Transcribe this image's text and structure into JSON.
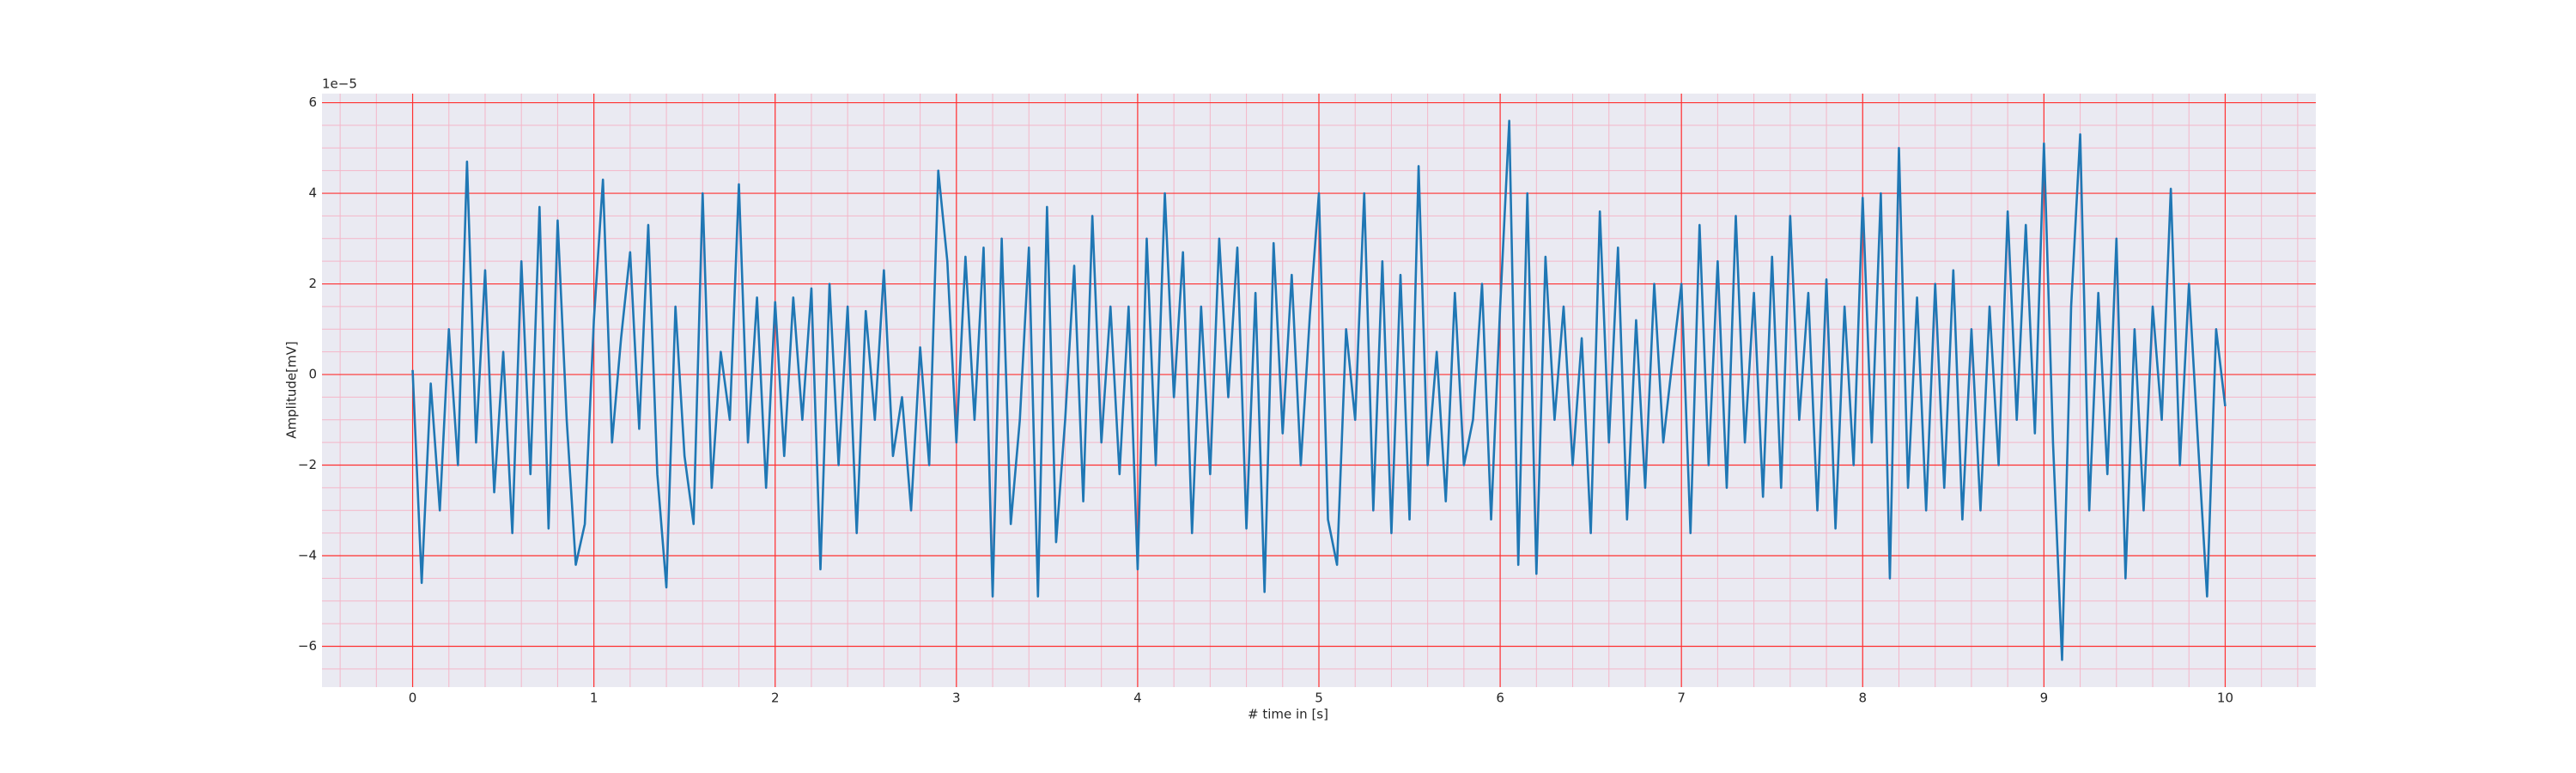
{
  "chart_data": {
    "type": "line",
    "xlabel": "# time in [s]",
    "ylabel": "Amplitude[mV]",
    "y_offset_text": "1e−5",
    "color": "#1f77b4",
    "grid": true,
    "minor_grid": true,
    "xlim": [
      -0.5,
      10.5
    ],
    "ylim": [
      -6.9,
      6.2
    ],
    "xticks": [
      0,
      1,
      2,
      3,
      4,
      5,
      6,
      7,
      8,
      9,
      10
    ],
    "yticks": [
      {
        "value": -6,
        "label": "−6"
      },
      {
        "value": -4,
        "label": "−4"
      },
      {
        "value": -2,
        "label": "−2"
      },
      0,
      2,
      4,
      6
    ],
    "x": [
      0,
      0.05,
      0.1,
      0.15,
      0.2,
      0.25,
      0.3,
      0.35,
      0.4,
      0.45,
      0.5,
      0.55,
      0.6,
      0.65,
      0.7,
      0.75,
      0.8,
      0.85,
      0.9,
      0.95,
      1,
      1.05,
      1.1,
      1.15,
      1.2,
      1.25,
      1.3,
      1.35,
      1.4,
      1.45,
      1.5,
      1.55,
      1.6,
      1.65,
      1.7,
      1.75,
      1.8,
      1.85,
      1.9,
      1.95,
      2,
      2.05,
      2.1,
      2.15,
      2.2,
      2.25,
      2.3,
      2.35,
      2.4,
      2.45,
      2.5,
      2.55,
      2.6,
      2.65,
      2.7,
      2.75,
      2.8,
      2.85,
      2.9,
      2.95,
      3,
      3.05,
      3.1,
      3.15,
      3.2,
      3.25,
      3.3,
      3.35,
      3.4,
      3.45,
      3.5,
      3.55,
      3.6,
      3.65,
      3.7,
      3.75,
      3.8,
      3.85,
      3.9,
      3.95,
      4,
      4.05,
      4.1,
      4.15,
      4.2,
      4.25,
      4.3,
      4.35,
      4.4,
      4.45,
      4.5,
      4.55,
      4.6,
      4.65,
      4.7,
      4.75,
      4.8,
      4.85,
      4.9,
      4.95,
      5,
      5.05,
      5.1,
      5.15,
      5.2,
      5.25,
      5.3,
      5.35,
      5.4,
      5.45,
      5.5,
      5.55,
      5.6,
      5.65,
      5.7,
      5.75,
      5.8,
      5.85,
      5.9,
      5.95,
      6,
      6.05,
      6.1,
      6.15,
      6.2,
      6.25,
      6.3,
      6.35,
      6.4,
      6.45,
      6.5,
      6.55,
      6.6,
      6.65,
      6.7,
      6.75,
      6.8,
      6.85,
      6.9,
      6.95,
      7,
      7.05,
      7.1,
      7.15,
      7.2,
      7.25,
      7.3,
      7.35,
      7.4,
      7.45,
      7.5,
      7.55,
      7.6,
      7.65,
      7.7,
      7.75,
      7.8,
      7.85,
      7.9,
      7.95,
      8,
      8.05,
      8.1,
      8.15,
      8.2,
      8.25,
      8.3,
      8.35,
      8.4,
      8.45,
      8.5,
      8.55,
      8.6,
      8.65,
      8.7,
      8.75,
      8.8,
      8.85,
      8.9,
      8.95,
      9,
      9.05,
      9.1,
      9.15,
      9.2,
      9.25,
      9.3,
      9.35,
      9.4,
      9.45,
      9.5,
      9.55,
      9.6,
      9.65,
      9.7,
      9.75,
      9.8,
      9.85,
      9.9,
      9.95,
      10
    ],
    "values": [
      0.1,
      -4.6,
      -0.2,
      -3.0,
      1.0,
      -2.0,
      4.7,
      -1.5,
      2.3,
      -2.6,
      0.5,
      -3.5,
      2.5,
      -2.2,
      3.7,
      -3.4,
      3.4,
      -1.0,
      -4.2,
      -3.3,
      1.2,
      4.3,
      -1.5,
      0.8,
      2.7,
      -1.2,
      3.3,
      -2.2,
      -4.7,
      1.5,
      -1.8,
      -3.3,
      4.0,
      -2.5,
      0.5,
      -1.0,
      4.2,
      -1.5,
      1.7,
      -2.5,
      1.6,
      -1.8,
      1.7,
      -1.0,
      1.9,
      -4.3,
      2.0,
      -2.0,
      1.5,
      -3.5,
      1.4,
      -1.0,
      2.3,
      -1.8,
      -0.5,
      -3.0,
      0.6,
      -2.0,
      4.5,
      2.5,
      -1.5,
      2.6,
      -1.0,
      2.8,
      -4.9,
      3.0,
      -3.3,
      -1.0,
      2.8,
      -4.9,
      3.7,
      -3.7,
      -1.0,
      2.4,
      -2.8,
      3.5,
      -1.5,
      1.5,
      -2.2,
      1.5,
      -4.3,
      3.0,
      -2.0,
      4.0,
      -0.5,
      2.7,
      -3.5,
      1.5,
      -2.2,
      3.0,
      -0.5,
      2.8,
      -3.4,
      1.8,
      -4.8,
      2.9,
      -1.3,
      2.2,
      -2.0,
      1.3,
      4.0,
      -3.2,
      -4.2,
      1.0,
      -1.0,
      4.0,
      -3.0,
      2.5,
      -3.5,
      2.2,
      -3.2,
      4.6,
      -2.0,
      0.5,
      -2.8,
      1.8,
      -2.0,
      -1.0,
      2.0,
      -3.2,
      1.5,
      5.6,
      -4.2,
      4.0,
      -4.4,
      2.6,
      -1.0,
      1.5,
      -2.0,
      0.8,
      -3.5,
      3.6,
      -1.5,
      2.8,
      -3.2,
      1.2,
      -2.5,
      2.0,
      -1.5,
      0.3,
      2.0,
      -3.5,
      3.3,
      -2.0,
      2.5,
      -2.5,
      3.5,
      -1.5,
      1.8,
      -2.7,
      2.6,
      -2.5,
      3.5,
      -1.0,
      1.8,
      -3.0,
      2.1,
      -3.4,
      1.5,
      -2.0,
      3.9,
      -1.5,
      4.0,
      -4.5,
      5.0,
      -2.5,
      1.7,
      -3.0,
      2.0,
      -2.5,
      2.3,
      -3.2,
      1.0,
      -3.0,
      1.5,
      -2.0,
      3.6,
      -1.0,
      3.3,
      -1.3,
      5.1,
      -1.5,
      -6.3,
      1.5,
      5.3,
      -3.0,
      1.8,
      -2.2,
      3.0,
      -4.5,
      1.0,
      -3.0,
      1.5,
      -1.0,
      4.1,
      -2.0,
      2.0,
      -1.5,
      -4.9,
      1.0,
      -0.7
    ]
  }
}
